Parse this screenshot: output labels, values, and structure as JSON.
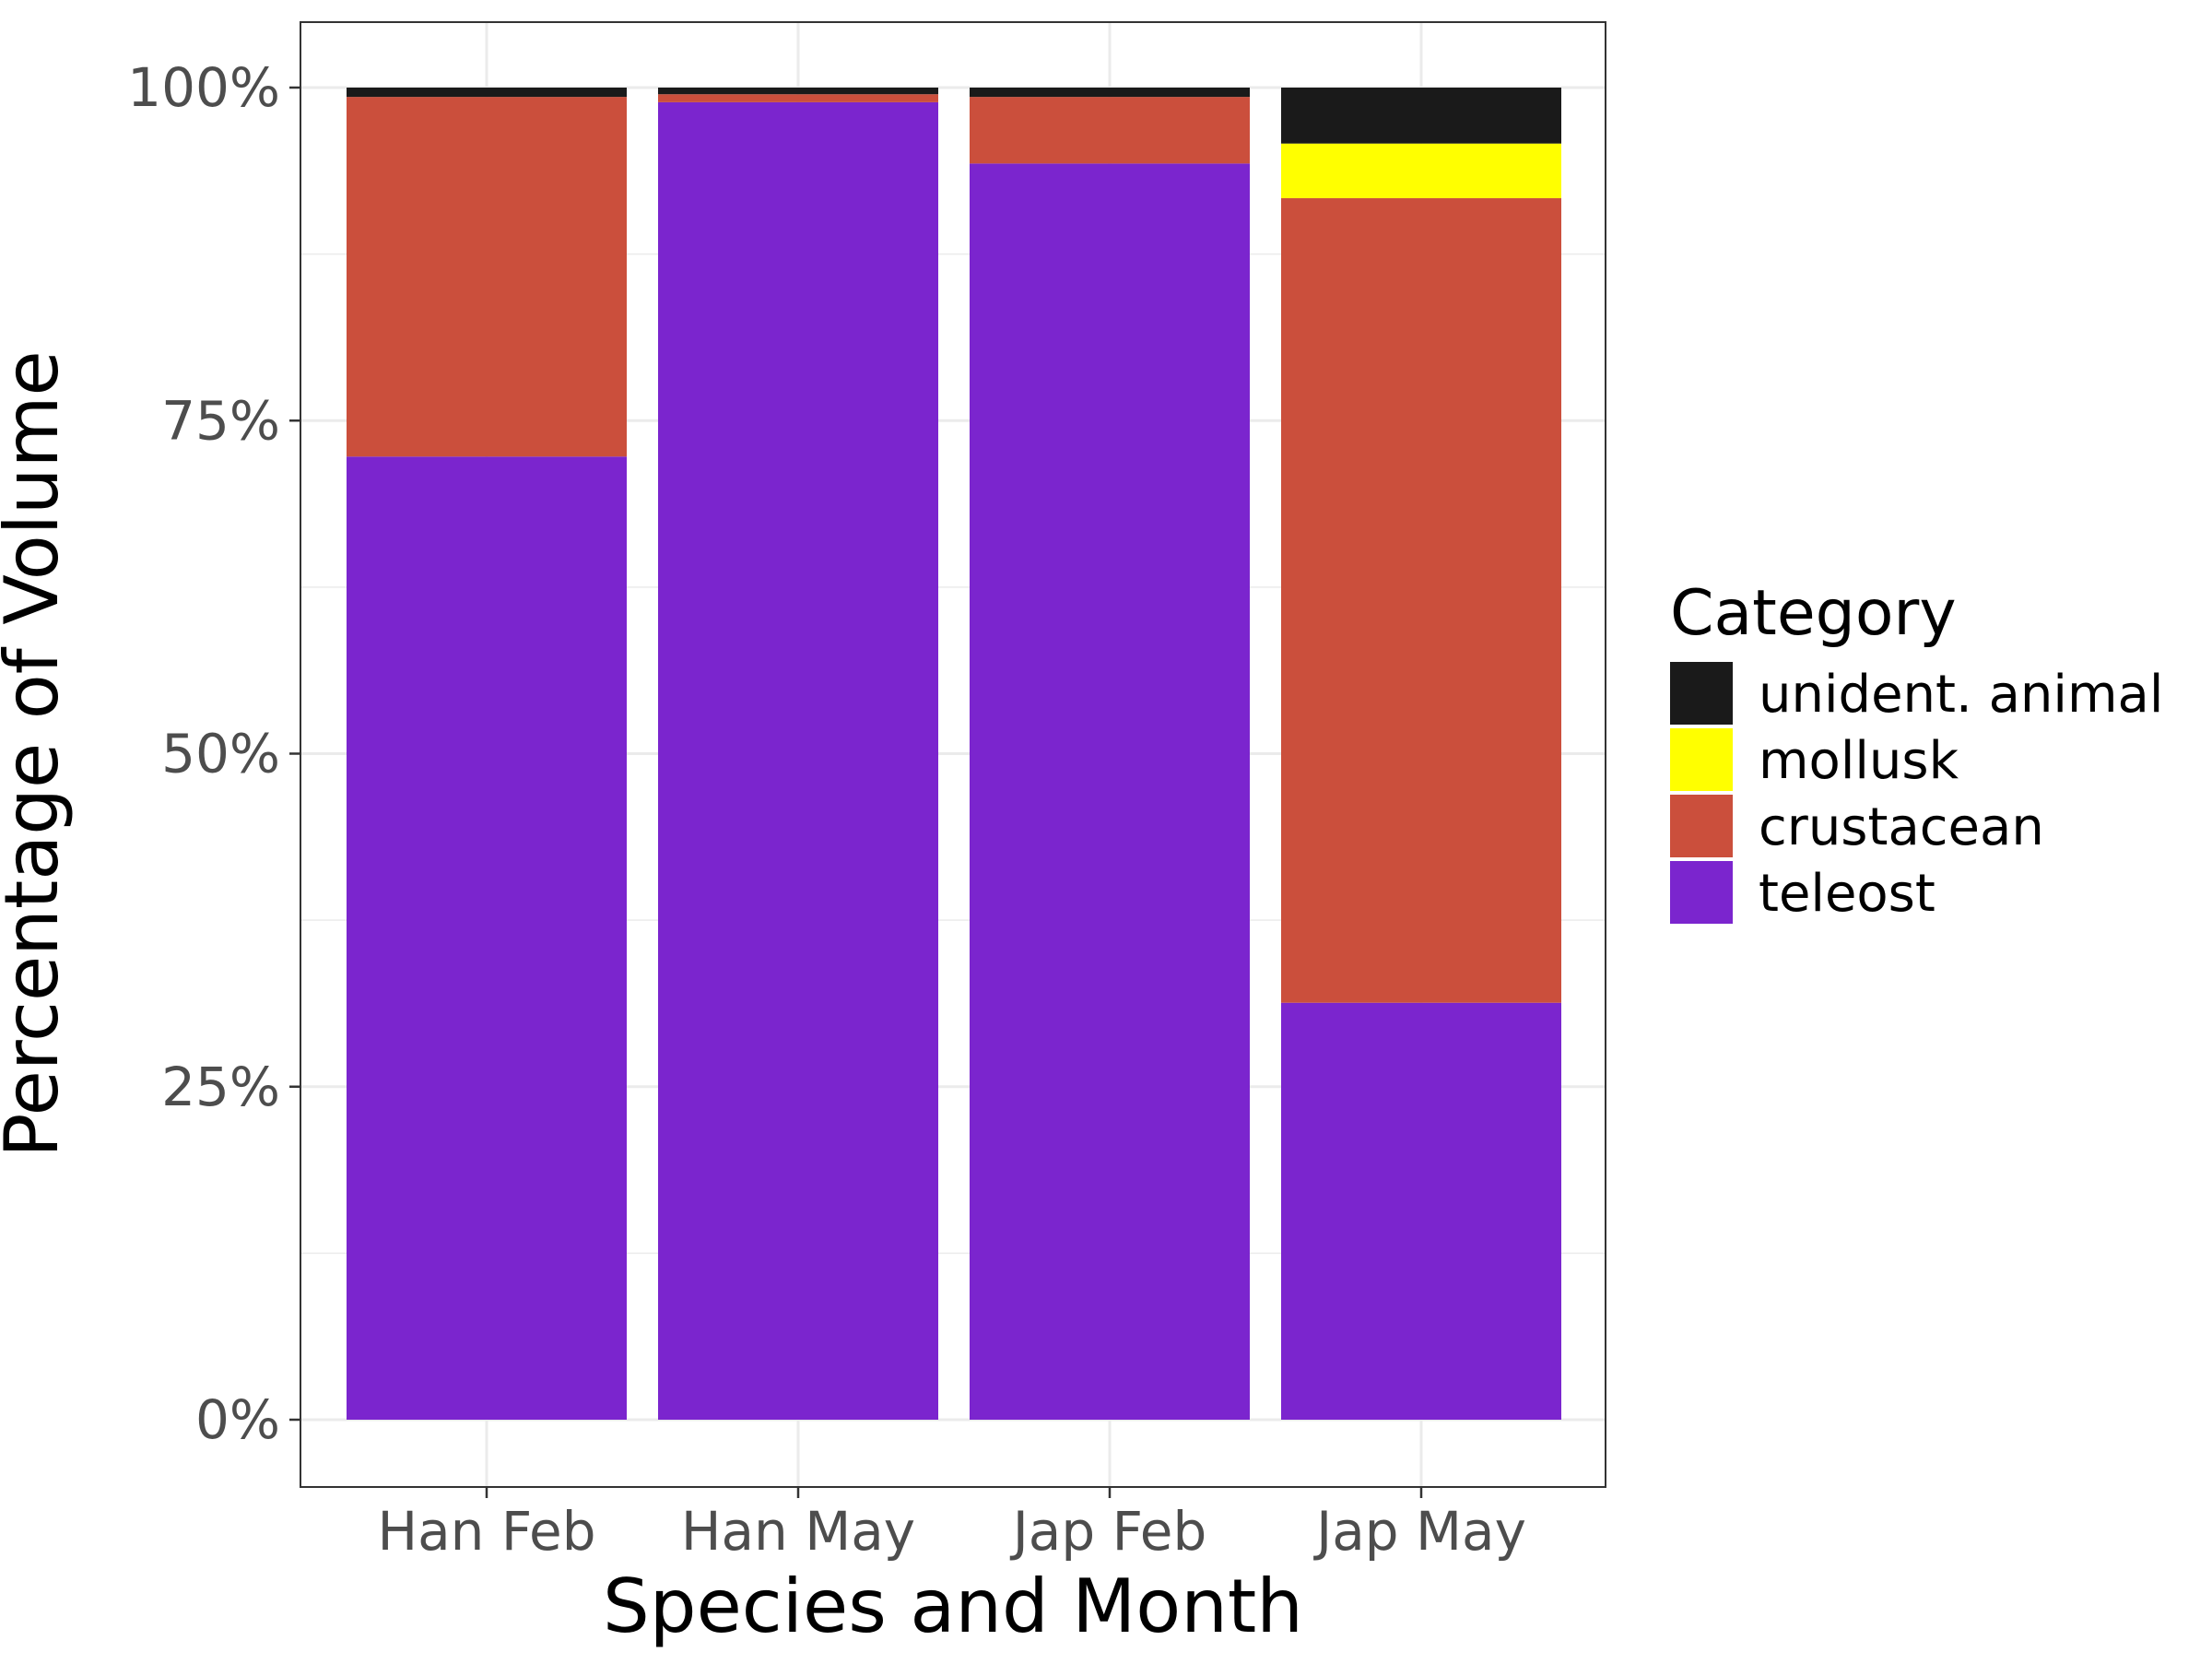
{
  "chart_data": {
    "type": "bar",
    "stacked": true,
    "title": "",
    "xlabel": "Species and Month",
    "ylabel": "Percentage of Volume",
    "categories": [
      "Han Feb",
      "Han May",
      "Jap Feb",
      "Jap May"
    ],
    "ylim": [
      0,
      1
    ],
    "y_ticks": [
      0,
      0.25,
      0.5,
      0.75,
      1
    ],
    "y_tick_labels": [
      "0%",
      "25%",
      "50%",
      "75%",
      "100%"
    ],
    "grid": true,
    "legend": {
      "title": "Category",
      "position": "right"
    },
    "series": [
      {
        "name": "teleost",
        "color": "#7B25CE",
        "values": [
          0.723,
          0.989,
          0.943,
          0.313
        ]
      },
      {
        "name": "crustacean",
        "color": "#CB4F3C",
        "values": [
          0.27,
          0.006,
          0.05,
          0.604
        ]
      },
      {
        "name": "mollusk",
        "color": "#FFFF00",
        "values": [
          0.0,
          0.0,
          0.0,
          0.041
        ]
      },
      {
        "name": "unident. animal",
        "color": "#1A1A1A",
        "values": [
          0.007,
          0.005,
          0.007,
          0.042
        ]
      }
    ]
  }
}
